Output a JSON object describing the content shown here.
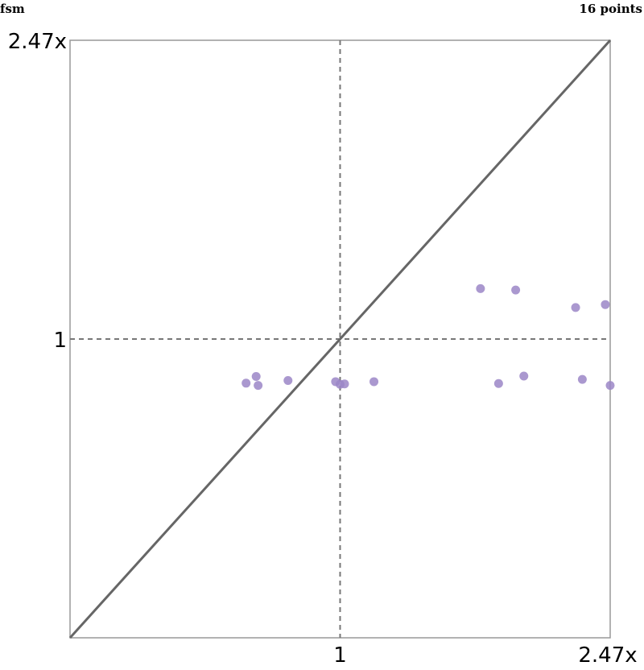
{
  "chart_data": {
    "type": "scatter",
    "title_left": "fsm",
    "title_right": "16 points",
    "x_scale": "log",
    "y_scale": "log",
    "xlim": [
      0.4049,
      2.47
    ],
    "ylim": [
      0.4049,
      2.47
    ],
    "x_ticks": [
      {
        "value": 1,
        "label": "1"
      },
      {
        "value": 2.47,
        "label": "2.47x"
      }
    ],
    "y_ticks": [
      {
        "value": 1,
        "label": "1"
      },
      {
        "value": 2.47,
        "label": "2.47x"
      }
    ],
    "reference_lines": {
      "diagonal": true,
      "x_equals_1": true,
      "y_equals_1": true
    },
    "point_color": "#9b86c7",
    "line_color": "#666666",
    "frame_color": "#999999",
    "points": [
      {
        "x": 0.73,
        "y": 0.875
      },
      {
        "x": 0.755,
        "y": 0.893
      },
      {
        "x": 0.76,
        "y": 0.869
      },
      {
        "x": 0.84,
        "y": 0.882
      },
      {
        "x": 0.985,
        "y": 0.879
      },
      {
        "x": 1.0,
        "y": 0.872
      },
      {
        "x": 1.015,
        "y": 0.873
      },
      {
        "x": 1.12,
        "y": 0.879
      },
      {
        "x": 1.6,
        "y": 1.165
      },
      {
        "x": 1.7,
        "y": 0.874
      },
      {
        "x": 1.8,
        "y": 1.16
      },
      {
        "x": 1.85,
        "y": 0.894
      },
      {
        "x": 2.2,
        "y": 1.1
      },
      {
        "x": 2.25,
        "y": 0.885
      },
      {
        "x": 2.43,
        "y": 1.11
      },
      {
        "x": 2.47,
        "y": 0.869
      }
    ]
  }
}
